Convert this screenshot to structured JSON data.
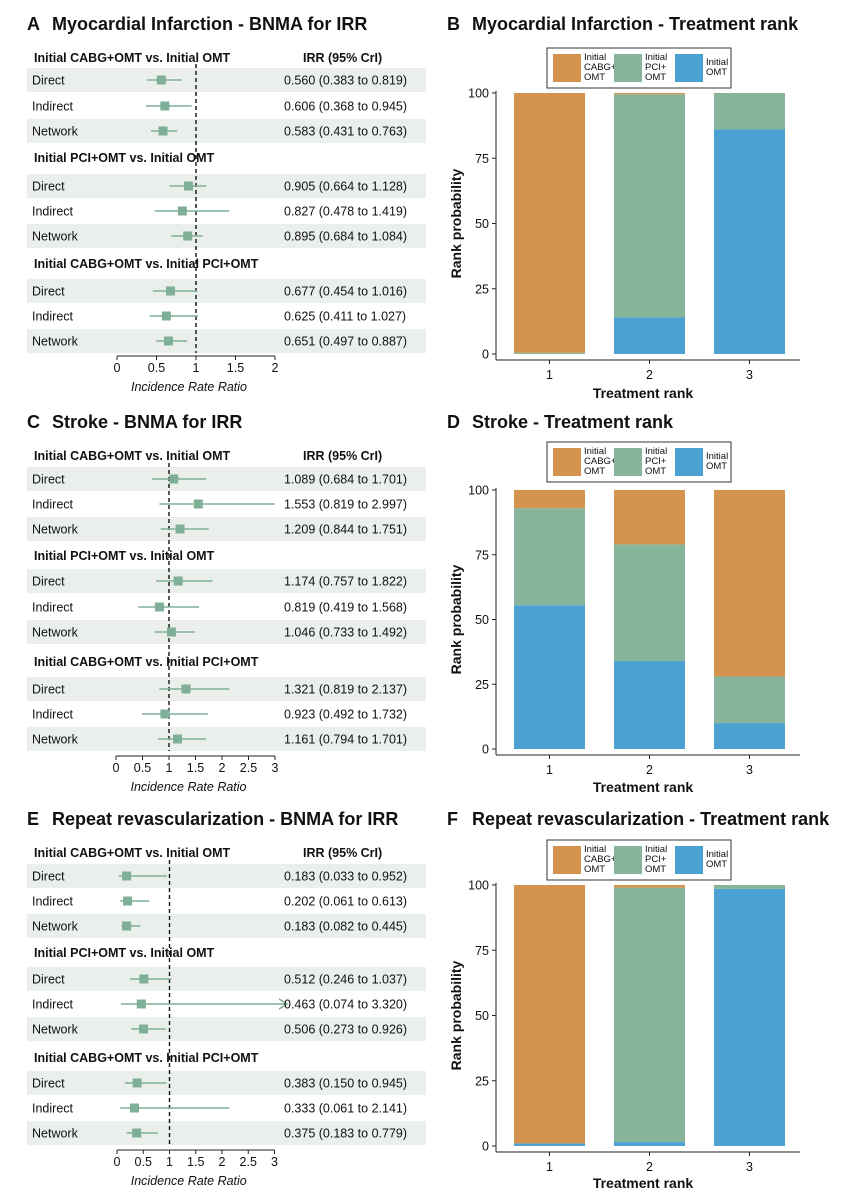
{
  "colors": {
    "cabg": "#d4934e",
    "pci": "#87b59b",
    "omt": "#4ba1d2",
    "point": "#7faf96",
    "row_band": "#eaefec"
  },
  "forest_common": {
    "col_header": "IRR (95% CrI)",
    "xlabel": "Incidence Rate Ratio"
  },
  "bar_common": {
    "xlabel": "Treatment rank",
    "ylabel": "Rank probability",
    "legend_items": [
      {
        "key": "cabg",
        "line1": "Initial",
        "line2": "CABG+",
        "line3": "OMT"
      },
      {
        "key": "pci",
        "line1": "Initial",
        "line2": "PCI+",
        "line3": "OMT"
      },
      {
        "key": "omt",
        "line1": "Initial",
        "line2": "OMT",
        "line3": ""
      }
    ]
  },
  "chart_data": [
    {
      "type": "forest",
      "panel_letter": "A",
      "title": "Myocardial Infarction - BNMA for IRR",
      "xlim": [
        0,
        2
      ],
      "xticks": [
        "0",
        "0.5",
        "1",
        "1.5",
        "2"
      ],
      "show_col_header": true,
      "groups": [
        {
          "label": "Initial CABG+OMT vs. Initial OMT",
          "rows": [
            {
              "name": "Direct",
              "est": 0.56,
              "lo": 0.383,
              "hi": 0.819,
              "text": "0.560 (0.383 to 0.819)"
            },
            {
              "name": "Indirect",
              "est": 0.606,
              "lo": 0.368,
              "hi": 0.945,
              "text": "0.606 (0.368 to 0.945)"
            },
            {
              "name": "Network",
              "est": 0.583,
              "lo": 0.431,
              "hi": 0.763,
              "text": "0.583 (0.431 to 0.763)"
            }
          ]
        },
        {
          "label": "Initial PCI+OMT vs. Initial OMT",
          "rows": [
            {
              "name": "Direct",
              "est": 0.905,
              "lo": 0.664,
              "hi": 1.128,
              "text": "0.905 (0.664 to 1.128)"
            },
            {
              "name": "Indirect",
              "est": 0.827,
              "lo": 0.478,
              "hi": 1.419,
              "text": "0.827 (0.478 to 1.419)"
            },
            {
              "name": "Network",
              "est": 0.895,
              "lo": 0.684,
              "hi": 1.084,
              "text": "0.895 (0.684 to 1.084)"
            }
          ]
        },
        {
          "label": "Initial CABG+OMT vs. Initial PCI+OMT",
          "rows": [
            {
              "name": "Direct",
              "est": 0.677,
              "lo": 0.454,
              "hi": 1.016,
              "text": "0.677 (0.454 to 1.016)"
            },
            {
              "name": "Indirect",
              "est": 0.625,
              "lo": 0.411,
              "hi": 1.027,
              "text": "0.625 (0.411 to 1.027)"
            },
            {
              "name": "Network",
              "est": 0.651,
              "lo": 0.497,
              "hi": 0.887,
              "text": "0.651 (0.497 to 0.887)"
            }
          ]
        }
      ]
    },
    {
      "type": "bar",
      "stacked": true,
      "panel_letter": "B",
      "title": "Myocardial Infarction - Treatment rank",
      "categories": [
        "1",
        "2",
        "3"
      ],
      "ylim": [
        0,
        100
      ],
      "yticks": [
        "0",
        "25",
        "50",
        "75",
        "100"
      ],
      "series": [
        {
          "name": "Initial CABG+OMT",
          "key": "cabg",
          "values": [
            99.5,
            0.5,
            0
          ]
        },
        {
          "name": "Initial PCI+OMT",
          "key": "pci",
          "values": [
            0.5,
            85.5,
            14
          ]
        },
        {
          "name": "Initial OMT",
          "key": "omt",
          "values": [
            0,
            14,
            86
          ]
        }
      ]
    },
    {
      "type": "forest",
      "panel_letter": "C",
      "title": "Stroke - BNMA for IRR",
      "xlim": [
        0,
        3
      ],
      "xticks": [
        "0",
        "0.5",
        "1",
        "1.5",
        "2",
        "2.5",
        "3"
      ],
      "show_col_header": true,
      "groups": [
        {
          "label": "Initial CABG+OMT vs. Initial OMT",
          "rows": [
            {
              "name": "Direct",
              "est": 1.089,
              "lo": 0.684,
              "hi": 1.701,
              "text": "1.089 (0.684 to 1.701)"
            },
            {
              "name": "Indirect",
              "est": 1.553,
              "lo": 0.819,
              "hi": 2.997,
              "text": "1.553 (0.819 to 2.997)"
            },
            {
              "name": "Network",
              "est": 1.209,
              "lo": 0.844,
              "hi": 1.751,
              "text": "1.209 (0.844 to 1.751)"
            }
          ]
        },
        {
          "label": "Initial PCI+OMT vs. Initial OMT",
          "rows": [
            {
              "name": "Direct",
              "est": 1.174,
              "lo": 0.757,
              "hi": 1.822,
              "text": "1.174 (0.757 to 1.822)"
            },
            {
              "name": "Indirect",
              "est": 0.819,
              "lo": 0.419,
              "hi": 1.568,
              "text": "0.819 (0.419 to 1.568)"
            },
            {
              "name": "Network",
              "est": 1.046,
              "lo": 0.733,
              "hi": 1.492,
              "text": "1.046 (0.733 to 1.492)"
            }
          ]
        },
        {
          "label": "Initial CABG+OMT vs. Initial PCI+OMT",
          "rows": [
            {
              "name": "Direct",
              "est": 1.321,
              "lo": 0.819,
              "hi": 2.137,
              "text": "1.321 (0.819 to 2.137)"
            },
            {
              "name": "Indirect",
              "est": 0.923,
              "lo": 0.492,
              "hi": 1.732,
              "text": "0.923 (0.492 to 1.732)"
            },
            {
              "name": "Network",
              "est": 1.161,
              "lo": 0.794,
              "hi": 1.701,
              "text": "1.161 (0.794 to 1.701)"
            }
          ]
        }
      ]
    },
    {
      "type": "bar",
      "stacked": true,
      "panel_letter": "D",
      "title": "Stroke - Treatment rank",
      "categories": [
        "1",
        "2",
        "3"
      ],
      "ylim": [
        0,
        100
      ],
      "yticks": [
        "0",
        "25",
        "50",
        "75",
        "100"
      ],
      "series": [
        {
          "name": "Initial CABG+OMT",
          "key": "cabg",
          "values": [
            7,
            21,
            72
          ]
        },
        {
          "name": "Initial PCI+OMT",
          "key": "pci",
          "values": [
            37.5,
            45,
            18
          ]
        },
        {
          "name": "Initial OMT",
          "key": "omt",
          "values": [
            55.5,
            34,
            10
          ]
        }
      ]
    },
    {
      "type": "forest",
      "panel_letter": "E",
      "title": "Repeat revascularization - BNMA for IRR",
      "xlim": [
        0,
        3
      ],
      "xticks": [
        "0",
        "0.5",
        "1",
        "1.5",
        "2",
        "2.5",
        "3"
      ],
      "show_col_header": true,
      "groups": [
        {
          "label": "Initial CABG+OMT vs. Initial OMT",
          "rows": [
            {
              "name": "Direct",
              "est": 0.183,
              "lo": 0.033,
              "hi": 0.952,
              "text": "0.183 (0.033 to 0.952)"
            },
            {
              "name": "Indirect",
              "est": 0.202,
              "lo": 0.061,
              "hi": 0.613,
              "text": "0.202 (0.061 to 0.613)"
            },
            {
              "name": "Network",
              "est": 0.183,
              "lo": 0.082,
              "hi": 0.445,
              "text": "0.183 (0.082 to 0.445)"
            }
          ]
        },
        {
          "label": "Initial PCI+OMT vs. Initial OMT",
          "rows": [
            {
              "name": "Direct",
              "est": 0.512,
              "lo": 0.246,
              "hi": 1.037,
              "text": "0.512 (0.246 to 1.037)"
            },
            {
              "name": "Indirect",
              "est": 0.463,
              "lo": 0.074,
              "hi": 3.32,
              "text": "0.463 (0.074 to 3.320)"
            },
            {
              "name": "Network",
              "est": 0.506,
              "lo": 0.273,
              "hi": 0.926,
              "text": "0.506 (0.273 to 0.926)"
            }
          ]
        },
        {
          "label": "Initial CABG+OMT vs. Initial PCI+OMT",
          "rows": [
            {
              "name": "Direct",
              "est": 0.383,
              "lo": 0.15,
              "hi": 0.945,
              "text": "0.383 (0.150 to 0.945)"
            },
            {
              "name": "Indirect",
              "est": 0.333,
              "lo": 0.061,
              "hi": 2.141,
              "text": "0.333 (0.061 to 2.141)"
            },
            {
              "name": "Network",
              "est": 0.375,
              "lo": 0.183,
              "hi": 0.779,
              "text": "0.375 (0.183 to 0.779)"
            }
          ]
        }
      ]
    },
    {
      "type": "bar",
      "stacked": true,
      "panel_letter": "F",
      "title": "Repeat revascularization - Treatment rank",
      "categories": [
        "1",
        "2",
        "3"
      ],
      "ylim": [
        0,
        100
      ],
      "yticks": [
        "0",
        "25",
        "50",
        "75",
        "100"
      ],
      "series": [
        {
          "name": "Initial CABG+OMT",
          "key": "cabg",
          "values": [
            99,
            1,
            0
          ]
        },
        {
          "name": "Initial PCI+OMT",
          "key": "pci",
          "values": [
            0,
            97.5,
            1.5
          ]
        },
        {
          "name": "Initial OMT",
          "key": "omt",
          "values": [
            1,
            1.5,
            98.5
          ]
        }
      ]
    }
  ]
}
